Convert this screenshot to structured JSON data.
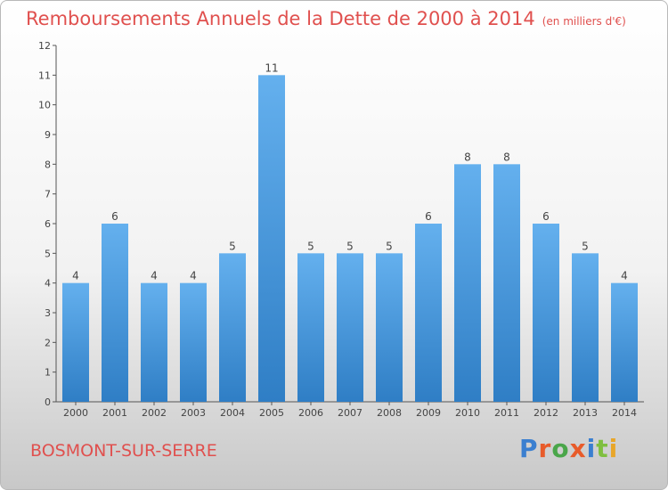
{
  "header": {
    "title": "Remboursements Annuels de la Dette de 2000 à 2014",
    "subtitle": "(en milliers d'€)"
  },
  "footer": {
    "commune": "BOSMONT-SUR-SERRE",
    "logo_text": "Proxiti"
  },
  "colors": {
    "title": "#e0504e",
    "bar_light": "#64b0ee",
    "bar_dark": "#2f7ec5",
    "logo": [
      "#3a7fd0",
      "#e85b2a",
      "#4aa64a",
      "#e85b2a",
      "#3a7fd0",
      "#7fbf3f",
      "#e8a62a"
    ]
  },
  "chart_data": {
    "type": "bar",
    "categories": [
      "2000",
      "2001",
      "2002",
      "2003",
      "2004",
      "2005",
      "2006",
      "2007",
      "2008",
      "2009",
      "2010",
      "2011",
      "2012",
      "2013",
      "2014"
    ],
    "values": [
      4,
      6,
      4,
      4,
      5,
      11,
      5,
      5,
      5,
      6,
      8,
      8,
      6,
      5,
      4
    ],
    "title": "Remboursements Annuels de la Dette de 2000 à 2014",
    "xlabel": "",
    "ylabel": "",
    "ylim": [
      0,
      12
    ],
    "yticks": [
      0,
      1,
      2,
      3,
      4,
      5,
      6,
      7,
      8,
      9,
      10,
      11,
      12
    ],
    "grid": false,
    "data_labels": true
  }
}
